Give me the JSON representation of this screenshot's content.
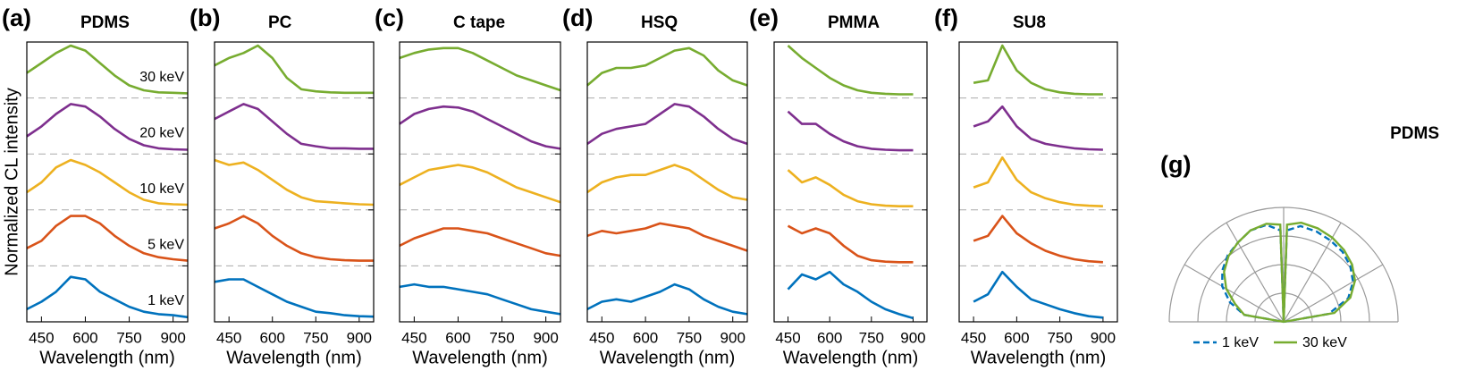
{
  "chart_data": [
    {
      "type": "line",
      "panel_label": "(a)",
      "title": "PDMS",
      "ylabel": "Normalized CL intensity",
      "xlabel": "Wavelength (nm)",
      "x": [
        400,
        450,
        500,
        550,
        600,
        650,
        700,
        750,
        800,
        850,
        900,
        950
      ],
      "xlim": [
        400,
        950
      ],
      "xticks": [
        450,
        600,
        750,
        900
      ],
      "ylim": [
        0,
        1
      ],
      "series": [
        {
          "name": "30 keV",
          "color": "#77ac30",
          "values": [
            0.45,
            0.65,
            0.85,
            1.0,
            0.9,
            0.65,
            0.4,
            0.2,
            0.1,
            0.06,
            0.05,
            0.04
          ]
        },
        {
          "name": "20 keV",
          "color": "#7e2f8e",
          "values": [
            0.3,
            0.5,
            0.75,
            0.95,
            0.9,
            0.7,
            0.45,
            0.25,
            0.12,
            0.06,
            0.04,
            0.03
          ]
        },
        {
          "name": "10 keV",
          "color": "#edb120",
          "values": [
            0.3,
            0.5,
            0.8,
            0.95,
            0.85,
            0.7,
            0.5,
            0.3,
            0.15,
            0.08,
            0.06,
            0.05
          ]
        },
        {
          "name": "5 keV",
          "color": "#d95319",
          "values": [
            0.3,
            0.45,
            0.75,
            0.95,
            0.95,
            0.8,
            0.55,
            0.35,
            0.2,
            0.12,
            0.08,
            0.05
          ]
        },
        {
          "name": "1 keV",
          "color": "#0072bd",
          "values": [
            0.2,
            0.35,
            0.55,
            0.85,
            0.8,
            0.55,
            0.4,
            0.25,
            0.15,
            0.1,
            0.08,
            0.04
          ]
        }
      ]
    },
    {
      "type": "line",
      "panel_label": "(b)",
      "title": "PC",
      "xlabel": "Wavelength (nm)",
      "x": [
        400,
        450,
        500,
        550,
        600,
        650,
        700,
        750,
        800,
        850,
        900,
        950
      ],
      "xlim": [
        400,
        950
      ],
      "xticks": [
        450,
        600,
        750,
        900
      ],
      "ylim": [
        0,
        1
      ],
      "series": [
        {
          "color": "#77ac30",
          "values": [
            0.6,
            0.75,
            0.85,
            1.0,
            0.75,
            0.35,
            0.12,
            0.08,
            0.06,
            0.05,
            0.05,
            0.05
          ]
        },
        {
          "color": "#7e2f8e",
          "values": [
            0.65,
            0.8,
            0.95,
            0.85,
            0.6,
            0.35,
            0.15,
            0.1,
            0.06,
            0.06,
            0.05,
            0.05
          ]
        },
        {
          "color": "#edb120",
          "values": [
            0.95,
            0.85,
            0.9,
            0.75,
            0.55,
            0.35,
            0.2,
            0.12,
            0.1,
            0.08,
            0.06,
            0.05
          ]
        },
        {
          "color": "#d95319",
          "values": [
            0.7,
            0.8,
            0.95,
            0.8,
            0.55,
            0.35,
            0.2,
            0.12,
            0.08,
            0.06,
            0.05,
            0.05
          ]
        },
        {
          "color": "#0072bd",
          "values": [
            0.75,
            0.8,
            0.8,
            0.65,
            0.5,
            0.35,
            0.25,
            0.15,
            0.12,
            0.08,
            0.06,
            0.05
          ]
        }
      ]
    },
    {
      "type": "line",
      "panel_label": "(c)",
      "title": "C tape",
      "xlabel": "Wavelength (nm)",
      "x": [
        400,
        450,
        500,
        550,
        600,
        650,
        700,
        750,
        800,
        850,
        900,
        950
      ],
      "xlim": [
        400,
        950
      ],
      "xticks": [
        450,
        600,
        750,
        900
      ],
      "ylim": [
        0,
        1
      ],
      "series": [
        {
          "color": "#77ac30",
          "values": [
            0.75,
            0.85,
            0.92,
            0.95,
            0.95,
            0.85,
            0.7,
            0.55,
            0.4,
            0.3,
            0.2,
            0.1
          ]
        },
        {
          "color": "#7e2f8e",
          "values": [
            0.55,
            0.75,
            0.85,
            0.9,
            0.88,
            0.8,
            0.65,
            0.5,
            0.35,
            0.2,
            0.1,
            0.05
          ]
        },
        {
          "color": "#edb120",
          "values": [
            0.45,
            0.6,
            0.75,
            0.8,
            0.85,
            0.8,
            0.7,
            0.55,
            0.4,
            0.3,
            0.2,
            0.1
          ]
        },
        {
          "color": "#d95319",
          "values": [
            0.35,
            0.5,
            0.6,
            0.7,
            0.7,
            0.65,
            0.6,
            0.5,
            0.4,
            0.3,
            0.2,
            0.15
          ]
        },
        {
          "color": "#0072bd",
          "values": [
            0.65,
            0.7,
            0.65,
            0.65,
            0.6,
            0.55,
            0.5,
            0.4,
            0.3,
            0.2,
            0.15,
            0.1
          ]
        }
      ]
    },
    {
      "type": "line",
      "panel_label": "(d)",
      "title": "HSQ",
      "xlabel": "Wavelength (nm)",
      "x": [
        400,
        450,
        500,
        550,
        600,
        650,
        700,
        750,
        800,
        850,
        900,
        950
      ],
      "xlim": [
        400,
        950
      ],
      "xticks": [
        450,
        600,
        750,
        900
      ],
      "ylim": [
        0,
        1
      ],
      "series": [
        {
          "color": "#77ac30",
          "values": [
            0.2,
            0.45,
            0.55,
            0.55,
            0.6,
            0.75,
            0.9,
            0.95,
            0.8,
            0.5,
            0.3,
            0.2
          ]
        },
        {
          "color": "#7e2f8e",
          "values": [
            0.15,
            0.35,
            0.45,
            0.5,
            0.55,
            0.75,
            0.95,
            0.9,
            0.7,
            0.45,
            0.25,
            0.15
          ]
        },
        {
          "color": "#edb120",
          "values": [
            0.3,
            0.5,
            0.6,
            0.65,
            0.65,
            0.75,
            0.85,
            0.75,
            0.55,
            0.35,
            0.2,
            0.15
          ]
        },
        {
          "color": "#d95319",
          "values": [
            0.55,
            0.65,
            0.6,
            0.65,
            0.7,
            0.8,
            0.75,
            0.7,
            0.55,
            0.45,
            0.35,
            0.25
          ]
        },
        {
          "color": "#0072bd",
          "values": [
            0.2,
            0.35,
            0.4,
            0.35,
            0.45,
            0.55,
            0.7,
            0.6,
            0.4,
            0.25,
            0.15,
            0.1
          ]
        }
      ]
    },
    {
      "type": "line",
      "panel_label": "(e)",
      "title": "PMMA",
      "xlabel": "Wavelength (nm)",
      "x": [
        450,
        500,
        550,
        600,
        650,
        700,
        750,
        800,
        850,
        900
      ],
      "xlim": [
        400,
        950
      ],
      "xticks": [
        450,
        600,
        750,
        900
      ],
      "ylim": [
        0,
        1
      ],
      "series": [
        {
          "color": "#77ac30",
          "values": [
            1.0,
            0.75,
            0.55,
            0.35,
            0.2,
            0.1,
            0.05,
            0.03,
            0.02,
            0.02
          ]
        },
        {
          "color": "#7e2f8e",
          "values": [
            0.8,
            0.55,
            0.55,
            0.35,
            0.2,
            0.1,
            0.05,
            0.03,
            0.02,
            0.02
          ]
        },
        {
          "color": "#edb120",
          "values": [
            0.75,
            0.5,
            0.6,
            0.45,
            0.25,
            0.12,
            0.06,
            0.03,
            0.02,
            0.02
          ]
        },
        {
          "color": "#d95319",
          "values": [
            0.75,
            0.6,
            0.7,
            0.6,
            0.35,
            0.15,
            0.06,
            0.03,
            0.02,
            0.02
          ]
        },
        {
          "color": "#0072bd",
          "values": [
            0.6,
            0.9,
            0.8,
            0.95,
            0.7,
            0.55,
            0.35,
            0.2,
            0.1,
            0.02
          ]
        }
      ]
    },
    {
      "type": "line",
      "panel_label": "(f)",
      "title": "SU8",
      "xlabel": "Wavelength (nm)",
      "x": [
        450,
        500,
        550,
        600,
        650,
        700,
        750,
        800,
        850,
        900
      ],
      "xlim": [
        400,
        950
      ],
      "xticks": [
        450,
        600,
        750,
        900
      ],
      "ylim": [
        0,
        1
      ],
      "series": [
        {
          "color": "#77ac30",
          "values": [
            0.25,
            0.3,
            1.0,
            0.5,
            0.25,
            0.12,
            0.06,
            0.03,
            0.02,
            0.02
          ]
        },
        {
          "color": "#7e2f8e",
          "values": [
            0.5,
            0.6,
            0.9,
            0.5,
            0.25,
            0.15,
            0.1,
            0.06,
            0.04,
            0.03
          ]
        },
        {
          "color": "#edb120",
          "values": [
            0.4,
            0.5,
            1.0,
            0.55,
            0.3,
            0.18,
            0.1,
            0.05,
            0.03,
            0.02
          ]
        },
        {
          "color": "#d95319",
          "values": [
            0.45,
            0.55,
            0.95,
            0.6,
            0.4,
            0.25,
            0.15,
            0.08,
            0.04,
            0.02
          ]
        },
        {
          "color": "#0072bd",
          "values": [
            0.35,
            0.5,
            0.95,
            0.65,
            0.4,
            0.3,
            0.2,
            0.12,
            0.06,
            0.03
          ]
        }
      ]
    },
    {
      "type": "polar",
      "panel_label": "(g)",
      "title": "PDMS",
      "theta": [
        0,
        10,
        20,
        30,
        40,
        50,
        60,
        70,
        80,
        88,
        90,
        92,
        100,
        110,
        120,
        130,
        140,
        150,
        160,
        170,
        180
      ],
      "rlim": [
        0,
        1
      ],
      "rticks": [
        0.25,
        0.5,
        0.75,
        1
      ],
      "thetaticks": [
        0,
        30,
        60,
        90,
        120,
        150,
        180
      ],
      "series": [
        {
          "name": "1 keV",
          "color": "#0072bd",
          "dashed": true,
          "values": [
            0,
            0.4,
            0.6,
            0.7,
            0.76,
            0.8,
            0.82,
            0.84,
            0.85,
            0.8,
            0,
            0.8,
            0.86,
            0.85,
            0.8,
            0.76,
            0.7,
            0.62,
            0.5,
            0.35,
            0
          ]
        },
        {
          "name": "30 keV",
          "color": "#77ac30",
          "dashed": false,
          "values": [
            0,
            0.45,
            0.62,
            0.72,
            0.78,
            0.82,
            0.85,
            0.87,
            0.88,
            0.85,
            0,
            0.85,
            0.87,
            0.85,
            0.8,
            0.75,
            0.68,
            0.58,
            0.45,
            0.35,
            0
          ]
        }
      ]
    }
  ]
}
